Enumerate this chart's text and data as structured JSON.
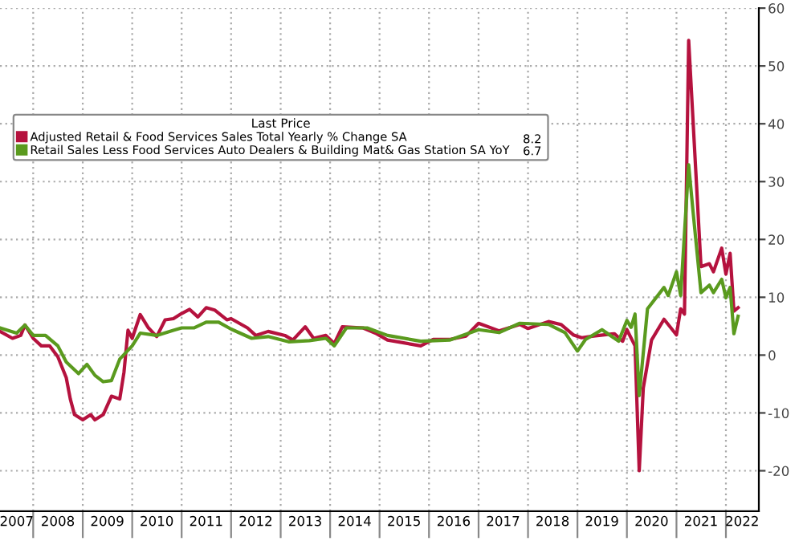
{
  "chart_data": {
    "type": "line",
    "legend_title": "Last Price",
    "legend": "top left",
    "grid": true,
    "line_style": "solid",
    "xlim": [
      "2007-05",
      "2022-09"
    ],
    "xticks": [
      {
        "value": "2008-01",
        "label": null
      },
      {
        "value": "2009-01",
        "label": null
      },
      {
        "value": "2010-01",
        "label": null
      },
      {
        "value": "2011-01",
        "label": null
      },
      {
        "value": "2012-01",
        "label": null
      },
      {
        "value": "2013-01",
        "label": null
      },
      {
        "value": "2014-01",
        "label": null
      },
      {
        "value": "2015-01",
        "label": null
      },
      {
        "value": "2016-01",
        "label": null
      },
      {
        "value": "2017-01",
        "label": null
      },
      {
        "value": "2018-01",
        "label": null
      },
      {
        "value": "2019-01",
        "label": null
      },
      {
        "value": "2020-01",
        "label": null
      },
      {
        "value": "2021-01",
        "label": null
      },
      {
        "value": "2022-01",
        "label": null
      },
      {
        "value": "2007-09",
        "label": "2007"
      },
      {
        "value": "2008-07",
        "label": "2008"
      },
      {
        "value": "2009-07",
        "label": "2009"
      },
      {
        "value": "2010-07",
        "label": "2010"
      },
      {
        "value": "2011-07",
        "label": "2011"
      },
      {
        "value": "2012-07",
        "label": "2012"
      },
      {
        "value": "2013-07",
        "label": "2013"
      },
      {
        "value": "2014-07",
        "label": "2014"
      },
      {
        "value": "2015-07",
        "label": "2015"
      },
      {
        "value": "2016-07",
        "label": "2016"
      },
      {
        "value": "2017-07",
        "label": "2017"
      },
      {
        "value": "2018-07",
        "label": "2018"
      },
      {
        "value": "2019-07",
        "label": "2019"
      },
      {
        "value": "2020-07",
        "label": "2020"
      },
      {
        "value": "2021-07",
        "label": "2021"
      },
      {
        "value": "2022-05",
        "label": "2022"
      }
    ],
    "ylim": [
      -27,
      60
    ],
    "yticks": [
      -20,
      -10,
      0,
      10,
      20,
      30,
      40,
      50,
      60
    ],
    "annotations": [
      "8.2",
      "6.7"
    ],
    "series": [
      {
        "name": "Adjusted Retail & Food Services Sales Total Yearly % Change SA",
        "color": "#b5123e",
        "x": [
          "2007-05",
          "2007-08",
          "2007-10",
          "2007-11",
          "2008-01",
          "2008-03",
          "2008-05",
          "2008-07",
          "2008-09",
          "2008-10",
          "2008-11",
          "2009-01",
          "2009-03",
          "2009-04",
          "2009-06",
          "2009-08",
          "2009-10",
          "2009-11",
          "2009-12",
          "2010-01",
          "2010-03",
          "2010-05",
          "2010-07",
          "2010-09",
          "2010-11",
          "2011-01",
          "2011-03",
          "2011-05",
          "2011-07",
          "2011-09",
          "2011-12",
          "2012-01",
          "2012-05",
          "2012-07",
          "2012-10",
          "2013-02",
          "2013-04",
          "2013-07",
          "2013-09",
          "2013-12",
          "2014-02",
          "2014-04",
          "2014-09",
          "2014-12",
          "2015-03",
          "2015-11",
          "2016-02",
          "2016-06",
          "2016-10",
          "2017-01",
          "2017-06",
          "2017-11",
          "2018-01",
          "2018-06",
          "2018-09",
          "2018-12",
          "2019-02",
          "2019-05",
          "2019-10",
          "2019-12",
          "2020-01",
          "2020-03",
          "2020-04",
          "2020-05",
          "2020-07",
          "2020-10",
          "2020-11",
          "2021-01",
          "2021-02",
          "2021-03",
          "2021-04",
          "2021-07",
          "2021-09",
          "2021-10",
          "2021-12",
          "2022-01",
          "2022-02",
          "2022-03",
          "2022-04"
        ],
        "values": [
          4.1,
          2.9,
          3.4,
          5.2,
          2.9,
          1.6,
          1.6,
          -0.3,
          -3.9,
          -7.6,
          -10.3,
          -11.2,
          -10.3,
          -11.2,
          -10.3,
          -7.1,
          -7.6,
          -3.0,
          4.3,
          2.9,
          7.0,
          4.7,
          3.2,
          6.1,
          6.3,
          7.2,
          7.9,
          6.6,
          8.2,
          7.8,
          6.1,
          6.3,
          4.7,
          3.4,
          4.1,
          3.4,
          2.6,
          4.9,
          2.9,
          3.4,
          2.0,
          4.9,
          4.7,
          3.8,
          2.6,
          1.6,
          2.7,
          2.7,
          3.3,
          5.5,
          4.2,
          5.3,
          4.6,
          5.8,
          5.3,
          3.5,
          3.0,
          3.3,
          3.7,
          2.4,
          4.4,
          1.6,
          -20.0,
          -5.7,
          2.6,
          6.2,
          5.3,
          3.5,
          8.0,
          7.1,
          54.4,
          15.3,
          15.8,
          14.4,
          18.5,
          14.0,
          17.6,
          7.6,
          8.2
        ]
      },
      {
        "name": "Retail Sales Less Food Services Auto Dealers & Building Mat& Gas Station SA YoY",
        "color": "#5a9a1e",
        "x": [
          "2007-05",
          "2007-09",
          "2007-11",
          "2008-01",
          "2008-04",
          "2008-07",
          "2008-09",
          "2008-12",
          "2009-02",
          "2009-04",
          "2009-06",
          "2009-08",
          "2009-10",
          "2010-01",
          "2010-03",
          "2010-07",
          "2010-11",
          "2011-01",
          "2011-04",
          "2011-07",
          "2011-10",
          "2012-01",
          "2012-06",
          "2012-10",
          "2013-03",
          "2013-08",
          "2013-12",
          "2014-02",
          "2014-05",
          "2014-10",
          "2015-03",
          "2015-11",
          "2016-06",
          "2017-01",
          "2017-06",
          "2017-11",
          "2018-06",
          "2018-10",
          "2019-01",
          "2019-03",
          "2019-07",
          "2019-11",
          "2020-01",
          "2020-02",
          "2020-03",
          "2020-04",
          "2020-06",
          "2020-10",
          "2020-11",
          "2021-01",
          "2021-02",
          "2021-04",
          "2021-05",
          "2021-07",
          "2021-09",
          "2021-10",
          "2021-12",
          "2022-01",
          "2022-02",
          "2022-03",
          "2022-04"
        ],
        "values": [
          4.7,
          3.8,
          5.2,
          3.4,
          3.4,
          1.6,
          -1.2,
          -3.2,
          -1.6,
          -3.5,
          -4.6,
          -4.4,
          -0.7,
          1.6,
          3.8,
          3.4,
          4.3,
          4.7,
          4.7,
          5.7,
          5.7,
          4.5,
          2.9,
          3.2,
          2.3,
          2.5,
          2.9,
          1.6,
          4.7,
          4.7,
          3.4,
          2.4,
          2.6,
          4.4,
          3.9,
          5.5,
          5.3,
          3.9,
          0.7,
          2.7,
          4.4,
          2.4,
          6.0,
          4.8,
          7.1,
          -7.0,
          8.0,
          11.7,
          10.3,
          14.4,
          10.3,
          32.9,
          25.4,
          10.8,
          12.1,
          10.8,
          13.1,
          9.9,
          11.7,
          3.7,
          6.7
        ]
      }
    ]
  }
}
